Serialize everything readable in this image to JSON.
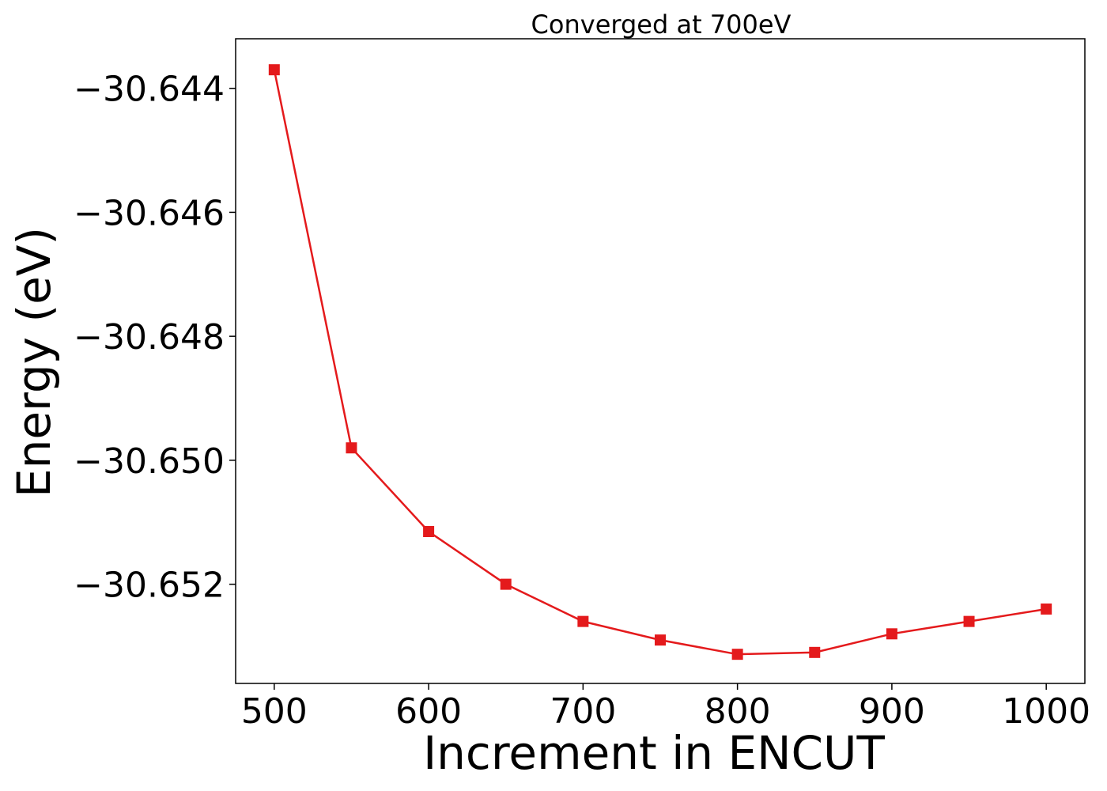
{
  "chart_data": {
    "type": "line",
    "title": "Converged at 700eV",
    "xlabel": "Increment in ENCUT",
    "ylabel": "Energy (eV)",
    "xlim": [
      475,
      1025
    ],
    "ylim": [
      -30.6536,
      -30.6432
    ],
    "xticks": [
      500,
      600,
      700,
      800,
      900,
      1000
    ],
    "yticks": [
      -30.644,
      -30.646,
      -30.648,
      -30.65,
      -30.652
    ],
    "ytick_labels": [
      "−30.644",
      "−30.646",
      "−30.648",
      "−30.650",
      "−30.652"
    ],
    "grid": false,
    "series": [
      {
        "color": "#e41a1c",
        "marker": "square",
        "x": [
          500,
          550,
          600,
          650,
          700,
          750,
          800,
          850,
          900,
          950,
          1000
        ],
        "y": [
          -30.6437,
          -30.6498,
          -30.65115,
          -30.652,
          -30.6526,
          -30.6529,
          -30.65313,
          -30.6531,
          -30.6528,
          -30.6526,
          -30.6524
        ]
      }
    ]
  }
}
